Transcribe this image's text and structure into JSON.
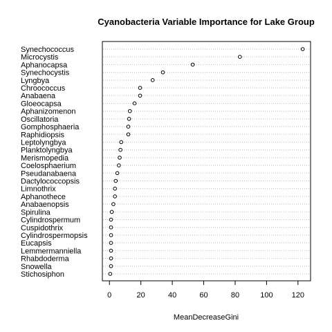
{
  "chart_data": {
    "type": "scatter",
    "title": "Cyanobacteria Variable Importance for Lake Group",
    "xlabel": "MeanDecreaseGini",
    "ylabel": "",
    "xlim": [
      -4.5,
      128
    ],
    "xticks": [
      0,
      20,
      40,
      60,
      80,
      100,
      120
    ],
    "grid": "dotted horizontal guide lines",
    "categories": [
      "Synechococcus",
      "Microcystis",
      "Aphanocapsa",
      "Synechocystis",
      "Lyngbya",
      "Chroococcus",
      "Anabaena",
      "Gloeocapsa",
      "Aphanizomenon",
      "Oscillatoria",
      "Gomphosphaeria",
      "Raphidiopsis",
      "Leptolyngbya",
      "Planktolyngbya",
      "Merismopedia",
      "Coelosphaerium",
      "Pseudanabaena",
      "Dactylococcopsis",
      "Limnothrix",
      "Aphanothece",
      "Anabaenopsis",
      "Spirulina",
      "Cylindrospermum",
      "Cuspidothrix",
      "Cylindrospermopsis",
      "Eucapsis",
      "Lemmermanniella",
      "Rhabdoderma",
      "Snowella",
      "Stichosiphon"
    ],
    "values": [
      123,
      83,
      53,
      34,
      27.5,
      19.5,
      19.5,
      16,
      13,
      12.5,
      12,
      12,
      7.5,
      7,
      6.5,
      6,
      5,
      4,
      3.5,
      3.5,
      2.5,
      1.5,
      1,
      1,
      1,
      1,
      1,
      1,
      1,
      0.5
    ]
  },
  "colors": {
    "points": "#000000",
    "grid": "#bdbdbd",
    "axes": "#000000"
  }
}
